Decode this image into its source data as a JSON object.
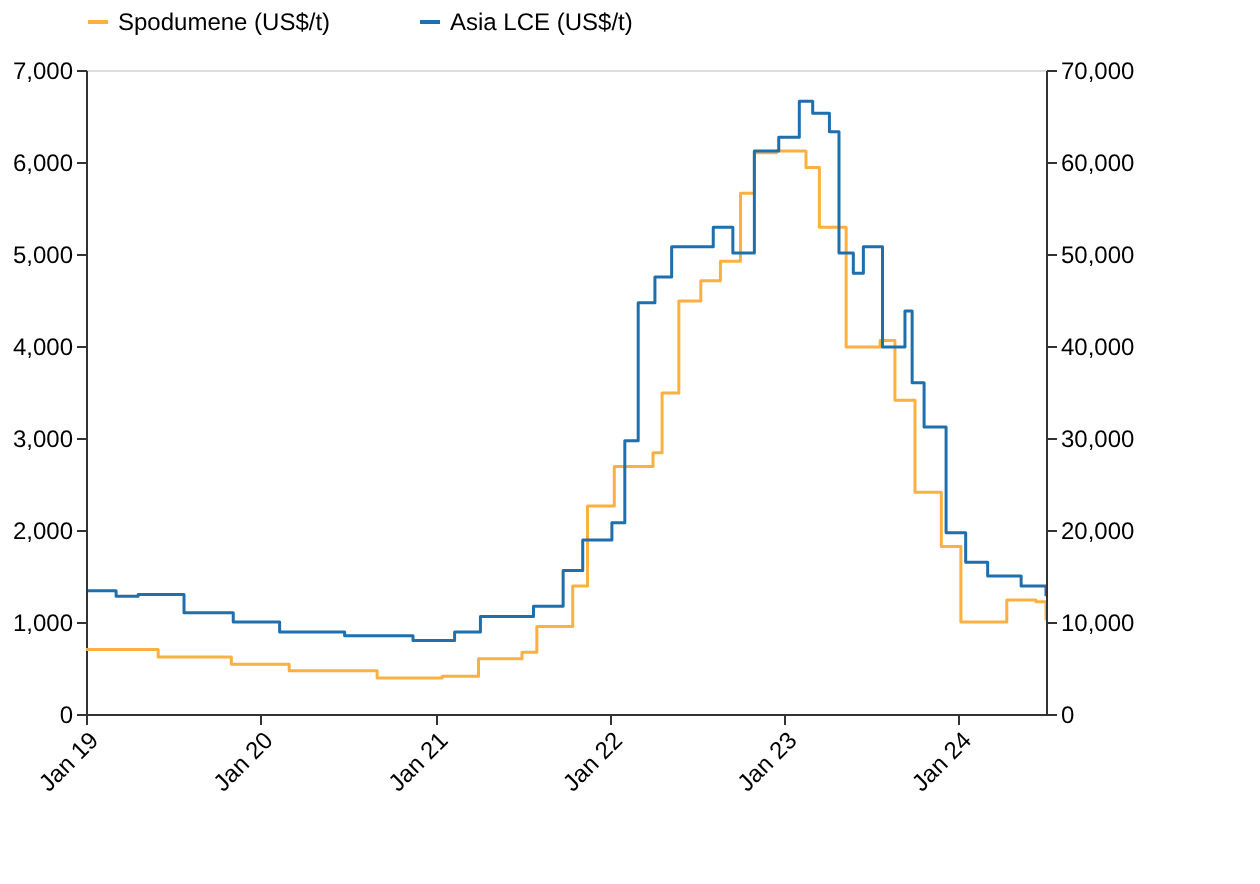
{
  "chart_data": {
    "type": "step",
    "legend": "top",
    "grid": false,
    "xlim": [
      "2019-01-01",
      "2024-07-01"
    ],
    "xticks": [
      {
        "value": "2019-01",
        "label": "Jan 19"
      },
      {
        "value": "2020-01",
        "label": "Jan 20"
      },
      {
        "value": "2021-01",
        "label": "Jan 21"
      },
      {
        "value": "2022-01",
        "label": "Jan 22"
      },
      {
        "value": "2023-01",
        "label": "Jan 23"
      },
      {
        "value": "2024-01",
        "label": "Jan 24"
      }
    ],
    "ylim": [
      0,
      7000
    ],
    "yticks": [
      {
        "value": 0,
        "label": "0"
      },
      {
        "value": 1000,
        "label": "1,000"
      },
      {
        "value": 2000,
        "label": "2,000"
      },
      {
        "value": 3000,
        "label": "3,000"
      },
      {
        "value": 4000,
        "label": "4,000"
      },
      {
        "value": 5000,
        "label": "5,000"
      },
      {
        "value": 6000,
        "label": "6,000"
      },
      {
        "value": 7000,
        "label": "7,000"
      }
    ],
    "y2lim": [
      0,
      70000
    ],
    "y2ticks": [
      {
        "value": 0,
        "label": "0"
      },
      {
        "value": 10000,
        "label": "10,000"
      },
      {
        "value": 20000,
        "label": "20,000"
      },
      {
        "value": 30000,
        "label": "30,000"
      },
      {
        "value": 40000,
        "label": "40,000"
      },
      {
        "value": 50000,
        "label": "50,000"
      },
      {
        "value": 60000,
        "label": "60,000"
      },
      {
        "value": 70000,
        "label": "70,000"
      }
    ],
    "series": [
      {
        "name": "Spodumene (US$/t)",
        "color": "#fbb040",
        "x": [
          "2019-01-01",
          "2019-06-01",
          "2019-11-01",
          "2020-03-01",
          "2020-09-01",
          "2021-01-15",
          "2021-04-01",
          "2021-07-01",
          "2021-08-01",
          "2021-10-15",
          "2021-11-15",
          "2022-01-10",
          "2022-04-01",
          "2022-04-20",
          "2022-05-25",
          "2022-07-10",
          "2022-08-20",
          "2022-10-01",
          "2022-10-30",
          "2022-12-15",
          "2023-02-15",
          "2023-03-15",
          "2023-05-10",
          "2023-07-20",
          "2023-08-20",
          "2023-10-01",
          "2023-11-25",
          "2024-01-05",
          "2024-03-01",
          "2024-04-10",
          "2024-06-10",
          "2024-07-01"
        ],
        "values": [
          700,
          620,
          540,
          470,
          390,
          410,
          600,
          670,
          950,
          1390,
          2260,
          2690,
          2840,
          3490,
          4490,
          4710,
          4920,
          5660,
          6100,
          6120,
          5940,
          5290,
          3990,
          4060,
          3410,
          2410,
          1820,
          1000,
          1000,
          1240,
          1220,
          1020
        ]
      },
      {
        "name": "Asia LCE (US$/t)",
        "color": "#1f6fad",
        "axis": "y2",
        "x": [
          "2019-01-05",
          "2019-03-05",
          "2019-04-20",
          "2019-07-25",
          "2019-11-05",
          "2020-02-10",
          "2020-06-25",
          "2020-11-15",
          "2021-02-10",
          "2021-04-05",
          "2021-07-25",
          "2021-09-25",
          "2021-11-05",
          "2022-01-05",
          "2022-02-01",
          "2022-03-01",
          "2022-04-05",
          "2022-05-10",
          "2022-08-05",
          "2022-09-15",
          "2022-10-30",
          "2022-12-20",
          "2023-02-01",
          "2023-03-01",
          "2023-04-05",
          "2023-04-25",
          "2023-05-25",
          "2023-06-15",
          "2023-07-25",
          "2023-09-10",
          "2023-09-25",
          "2023-10-20",
          "2023-12-05",
          "2024-01-15",
          "2024-03-01",
          "2024-05-10",
          "2024-07-01"
        ],
        "values": [
          13400,
          12800,
          13000,
          11000,
          10000,
          8900,
          8500,
          8000,
          8900,
          10600,
          11700,
          15600,
          18900,
          20800,
          29700,
          44700,
          47500,
          50800,
          52900,
          50100,
          61200,
          62700,
          66600,
          65300,
          63300,
          50100,
          47900,
          50800,
          39900,
          43800,
          36000,
          31200,
          19700,
          16500,
          15000,
          13900,
          12800
        ]
      }
    ]
  }
}
